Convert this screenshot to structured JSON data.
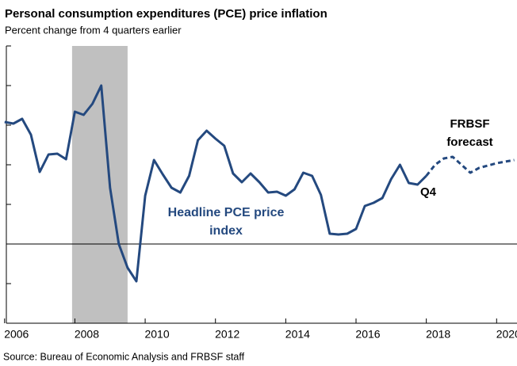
{
  "chart_data": {
    "type": "line",
    "title": "Personal consumption expenditures (PCE) price inflation",
    "subtitle": "Percent change from 4 quarters earlier",
    "source": "Source: Bureau of Economic Analysis and FRBSF staff",
    "annotations": [
      "Q4"
    ],
    "xlim": [
      2006.05,
      2020.58
    ],
    "xticks": [
      2006,
      2008,
      2010,
      2012,
      2014,
      2016,
      2018,
      2020
    ],
    "ylim": [
      -2,
      5
    ],
    "yticks": [
      -2,
      -1,
      0,
      1,
      2,
      3,
      4,
      5
    ],
    "shaded_periods": [
      [
        2007.92,
        2009.5
      ]
    ],
    "shade_color": "#c0c0c0",
    "series": [
      {
        "name": "Headline PCE price index",
        "color": "#24497f",
        "dashed": false,
        "x": [
          2006.0,
          2006.25,
          2006.5,
          2006.75,
          2007.0,
          2007.25,
          2007.5,
          2007.75,
          2008.0,
          2008.25,
          2008.5,
          2008.75,
          2009.0,
          2009.25,
          2009.5,
          2009.75,
          2010.0,
          2010.25,
          2010.5,
          2010.75,
          2011.0,
          2011.25,
          2011.5,
          2011.75,
          2012.0,
          2012.25,
          2012.5,
          2012.75,
          2013.0,
          2013.25,
          2013.5,
          2013.75,
          2014.0,
          2014.25,
          2014.5,
          2014.75,
          2015.0,
          2015.25,
          2015.5,
          2015.75,
          2016.0,
          2016.25,
          2016.5,
          2016.75,
          2017.0,
          2017.25,
          2017.5,
          2017.75,
          2018.0
        ],
        "values": [
          3.08,
          3.04,
          3.16,
          2.76,
          1.82,
          2.26,
          2.28,
          2.14,
          3.34,
          3.26,
          3.54,
          4.0,
          1.42,
          0.0,
          -0.6,
          -0.94,
          1.22,
          2.12,
          1.76,
          1.42,
          1.3,
          1.72,
          2.62,
          2.86,
          2.66,
          2.48,
          1.78,
          1.56,
          1.78,
          1.56,
          1.3,
          1.32,
          1.22,
          1.38,
          1.8,
          1.72,
          1.24,
          0.26,
          0.24,
          0.26,
          0.38,
          0.96,
          1.04,
          1.16,
          1.64,
          2.0,
          1.54,
          1.5,
          1.72
        ]
      },
      {
        "name": "FRBSF forecast",
        "color": "#24497f",
        "dashed": true,
        "x": [
          2018.0,
          2018.25,
          2018.5,
          2018.75,
          2019.0,
          2019.25,
          2019.5,
          2019.75,
          2020.0,
          2020.25,
          2020.5
        ],
        "values": [
          1.72,
          2.0,
          2.16,
          2.2,
          2.0,
          1.8,
          1.92,
          1.98,
          2.04,
          2.08,
          2.12
        ]
      }
    ]
  }
}
